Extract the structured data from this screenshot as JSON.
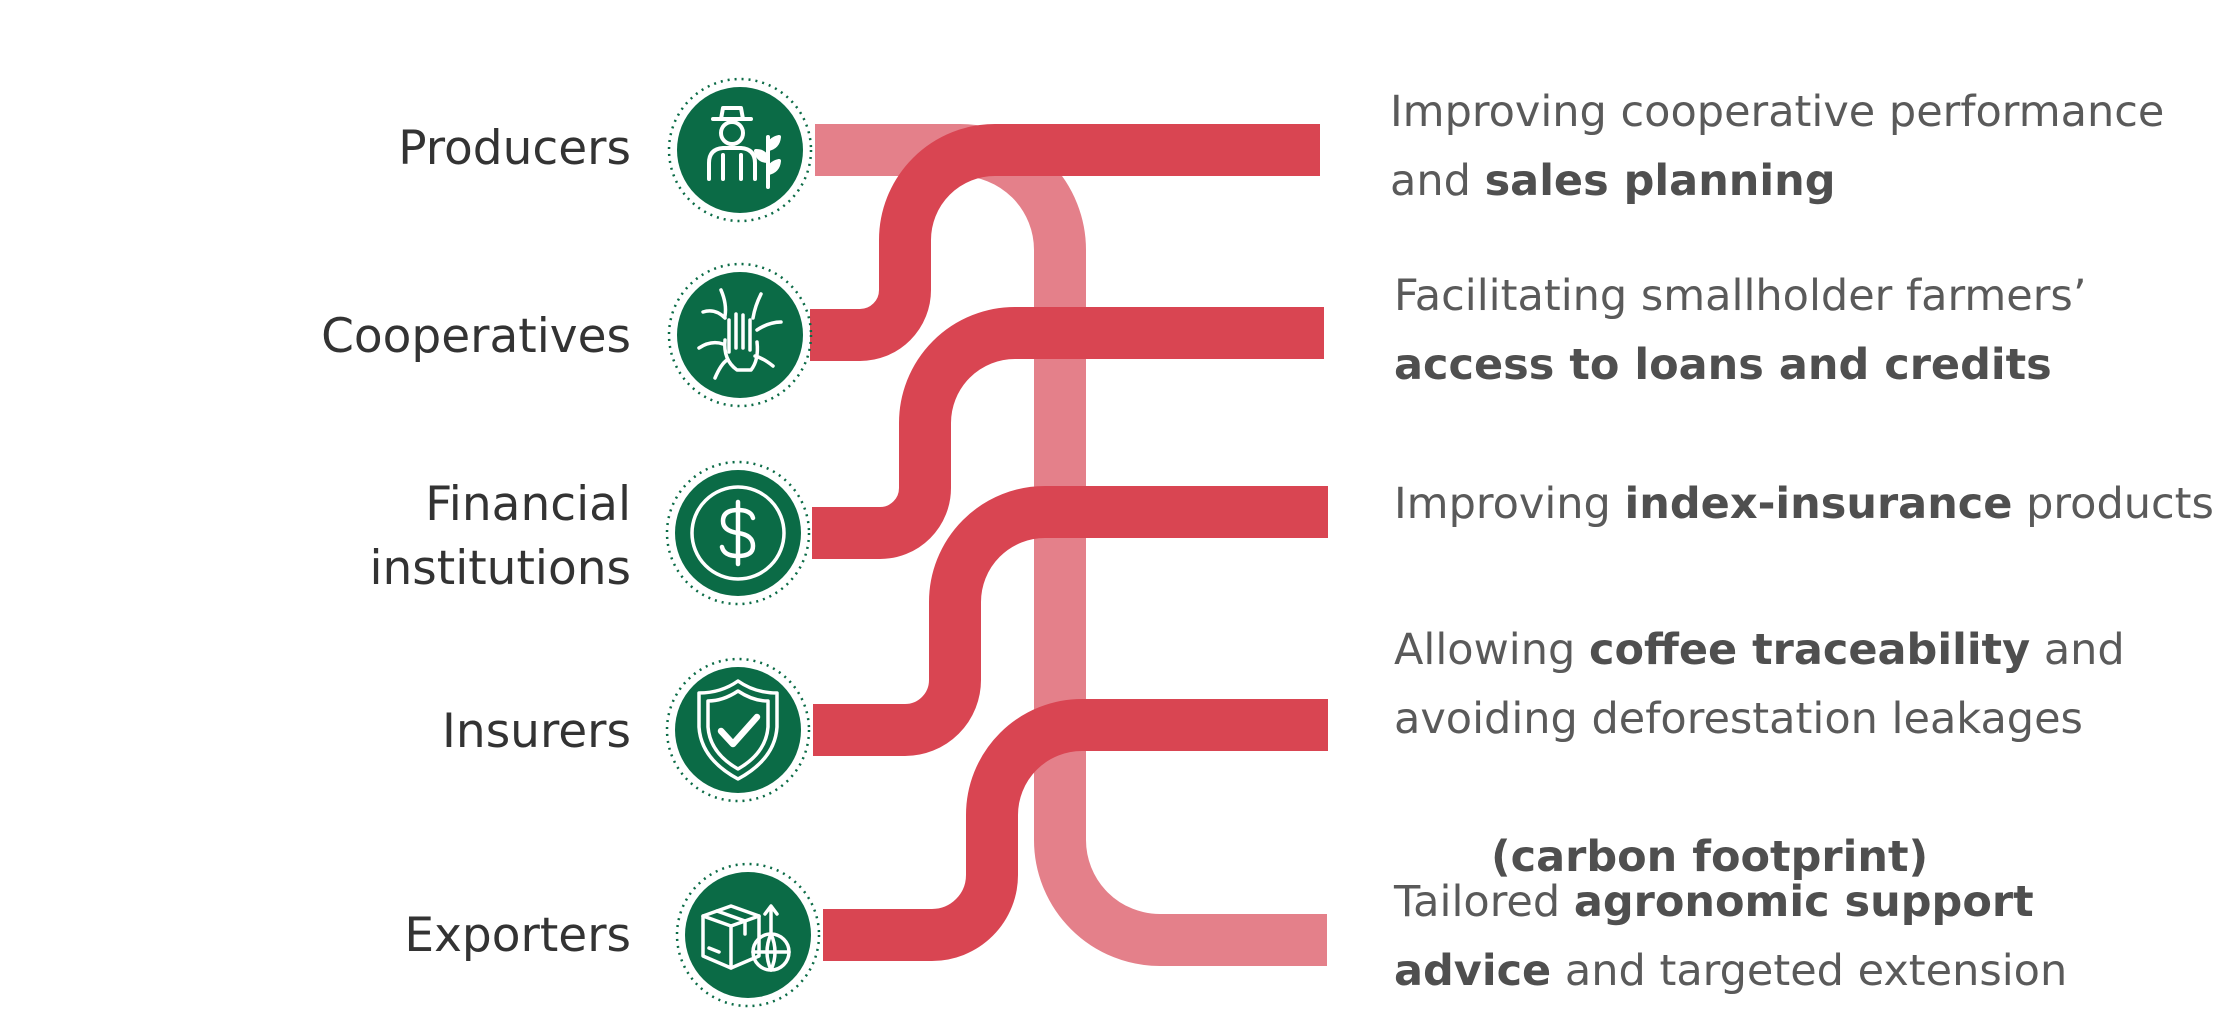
{
  "colors": {
    "icon_green": "#0b6b46",
    "connector_red": "#d94552",
    "connector_pink": "#e4808a",
    "label_text": "#333333",
    "outcome_text": "#5a5a5a"
  },
  "stakeholders": [
    {
      "label_lines": [
        "Producers"
      ],
      "icon": "farmer-icon"
    },
    {
      "label_lines": [
        "Cooperatives"
      ],
      "icon": "joined-hands-icon"
    },
    {
      "label_lines": [
        "Financial",
        "institutions"
      ],
      "icon": "dollar-coin-icon"
    },
    {
      "label_lines": [
        "Insurers"
      ],
      "icon": "shield-check-icon"
    },
    {
      "label_lines": [
        "Exporters"
      ],
      "icon": "package-globe-icon"
    }
  ],
  "outcomes": [
    {
      "lines": [
        [
          {
            "text": "Improving cooperative performance",
            "bold": false
          }
        ],
        [
          {
            "text": "and ",
            "bold": false
          },
          {
            "text": "sales planning",
            "bold": true
          }
        ]
      ]
    },
    {
      "lines": [
        [
          {
            "text": "Facilitating smallholder farmers’",
            "bold": false
          }
        ],
        [
          {
            "text": "access to loans and credits",
            "bold": true
          }
        ]
      ]
    },
    {
      "lines": [
        [
          {
            "text": "Improving ",
            "bold": false
          },
          {
            "text": "index-insurance",
            "bold": true
          },
          {
            "text": " products",
            "bold": false
          }
        ]
      ]
    },
    {
      "lines": [
        [
          {
            "text": "Allowing ",
            "bold": false
          },
          {
            "text": "coffee traceability",
            "bold": true
          },
          {
            "text": " and",
            "bold": false
          }
        ],
        [
          {
            "text": "avoiding deforestation leakages",
            "bold": false
          }
        ],
        [
          {
            "text": " (carbon footprint)",
            "bold": true
          }
        ]
      ]
    },
    {
      "lines": [
        [
          {
            "text": "Tailored ",
            "bold": false
          },
          {
            "text": "agronomic support",
            "bold": true
          }
        ],
        [
          {
            "text": "advice",
            "bold": true
          },
          {
            "text": " and targeted extension",
            "bold": false
          }
        ]
      ]
    }
  ]
}
